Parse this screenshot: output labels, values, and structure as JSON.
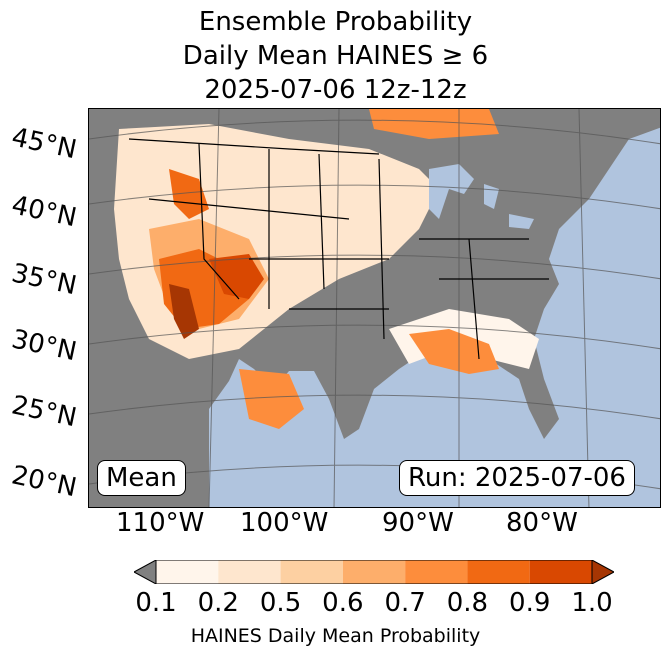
{
  "title": {
    "line1": "Ensemble Probability",
    "line2": "Daily Mean HAINES ≥ 6",
    "line3": "2025-07-06 12z-12z"
  },
  "map": {
    "region": "Continental United States",
    "lat_labels": [
      "45°N",
      "40°N",
      "35°N",
      "30°N",
      "25°N",
      "20°N"
    ],
    "lon_labels": [
      "110°W",
      "100°W",
      "90°W",
      "80°W"
    ],
    "stat_badge": "Mean",
    "run_badge": "Run: 2025-07-06",
    "colors": {
      "ocean": "#b0c4de",
      "masked": "#808080",
      "land_base": "#fff5eb"
    }
  },
  "colorbar": {
    "ticks": [
      "0.1",
      "0.2",
      "0.5",
      "0.6",
      "0.7",
      "0.8",
      "0.9",
      "1.0"
    ],
    "colors": [
      "#fff5eb",
      "#fee6ce",
      "#fdd0a2",
      "#fdae6b",
      "#fd8d3c",
      "#f16913",
      "#d94801",
      "#a63603"
    ],
    "under_color": "#808080",
    "label": "HAINES Daily Mean Probability"
  }
}
